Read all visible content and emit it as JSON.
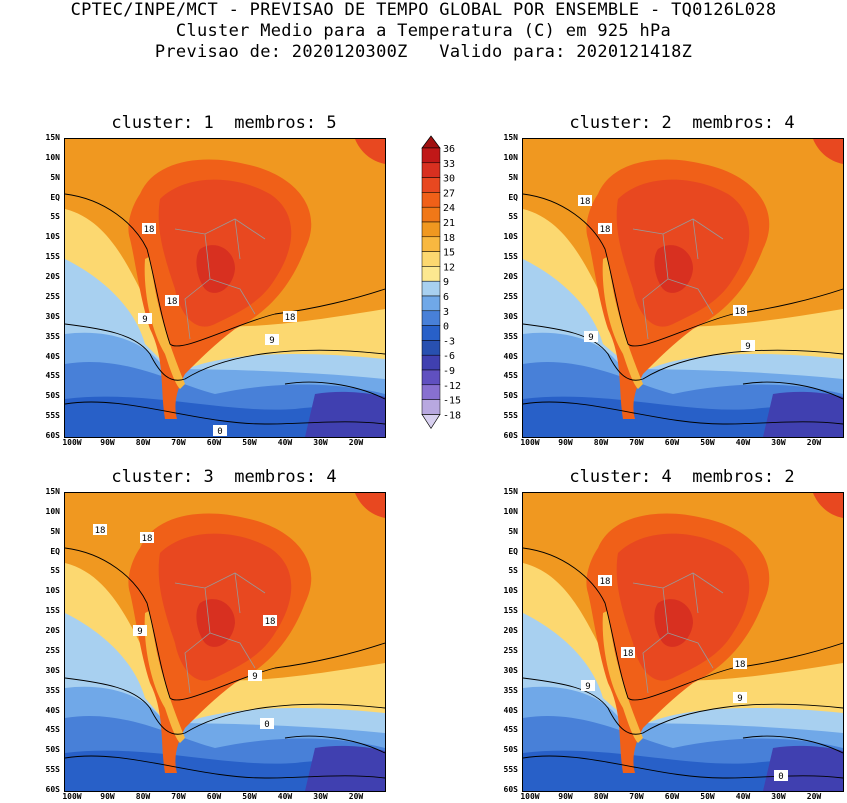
{
  "header": {
    "line1": "CPTEC/INPE/MCT - PREVISAO DE TEMPO GLOBAL POR ENSEMBLE - TQ0126L028",
    "line2": "Cluster Medio para a Temperatura (C) em 925 hPa",
    "line3": "Previsao de: 2020120300Z   Valido para: 2020121418Z"
  },
  "panels": [
    {
      "title": "cluster: 1  membros: 5",
      "contour_labels": [
        "18",
        "18",
        "18",
        "9",
        "9",
        "0"
      ]
    },
    {
      "title": "cluster: 2  membros: 4",
      "contour_labels": [
        "18",
        "18",
        "18",
        "9",
        "9"
      ]
    },
    {
      "title": "cluster: 3  membros: 4",
      "contour_labels": [
        "18",
        "18",
        "18",
        "9",
        "9",
        "0"
      ]
    },
    {
      "title": "cluster: 4  membros: 2",
      "contour_labels": [
        "18",
        "18",
        "18",
        "9",
        "9",
        "0"
      ]
    }
  ],
  "lat_labels": [
    "15N",
    "10N",
    "5N",
    "EQ",
    "5S",
    "10S",
    "15S",
    "20S",
    "25S",
    "30S",
    "35S",
    "40S",
    "45S",
    "50S",
    "55S",
    "60S"
  ],
  "lon_labels": [
    "100W",
    "90W",
    "80W",
    "70W",
    "60W",
    "50W",
    "40W",
    "30W",
    "20W"
  ],
  "colorbar": {
    "labels": [
      "36",
      "33",
      "30",
      "27",
      "24",
      "21",
      "18",
      "15",
      "12",
      "9",
      "6",
      "3",
      "0",
      "-3",
      "-6",
      "-9",
      "-12",
      "-15",
      "-18"
    ],
    "colors": [
      "#a01010",
      "#c01818",
      "#d83020",
      "#e84820",
      "#f06018",
      "#f07818",
      "#f09820",
      "#f8b840",
      "#fcd870",
      "#fce890",
      "#a8d0f0",
      "#70a8e8",
      "#4880d8",
      "#2860c8",
      "#2850b0",
      "#4040b0",
      "#6050c0",
      "#8870d0",
      "#b8a8e0",
      "#d8d0f0"
    ]
  }
}
